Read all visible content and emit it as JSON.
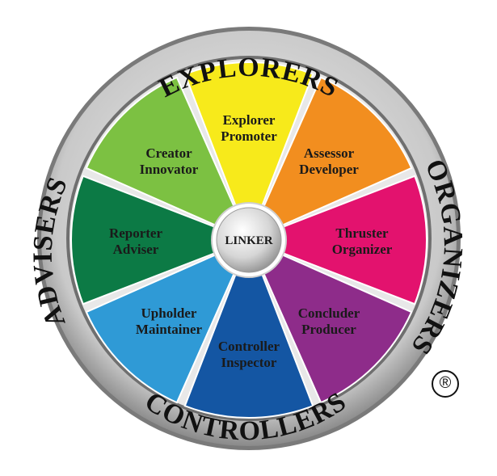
{
  "ring_labels": {
    "top": "EXPLORERS",
    "right": "ORGANIZERS",
    "bottom": "CONTROLLERS",
    "left": "ADVISERS"
  },
  "hub": {
    "label": "LINKER"
  },
  "segments": [
    {
      "line1": "Explorer",
      "line2": "Promoter",
      "color": "#f7ea1b"
    },
    {
      "line1": "Assessor",
      "line2": "Developer",
      "color": "#f28e1f"
    },
    {
      "line1": "Thruster",
      "line2": "Organizer",
      "color": "#e3126e"
    },
    {
      "line1": "Concluder",
      "line2": "Producer",
      "color": "#8e2c8a"
    },
    {
      "line1": "Controller",
      "line2": "Inspector",
      "color": "#1456a3"
    },
    {
      "line1": "Upholder",
      "line2": "Maintainer",
      "color": "#2f9ad6"
    },
    {
      "line1": "Reporter",
      "line2": "Adviser",
      "color": "#0c7a45"
    },
    {
      "line1": "Creator",
      "line2": "Innovator",
      "color": "#7cc142"
    }
  ],
  "registered_mark": "®"
}
